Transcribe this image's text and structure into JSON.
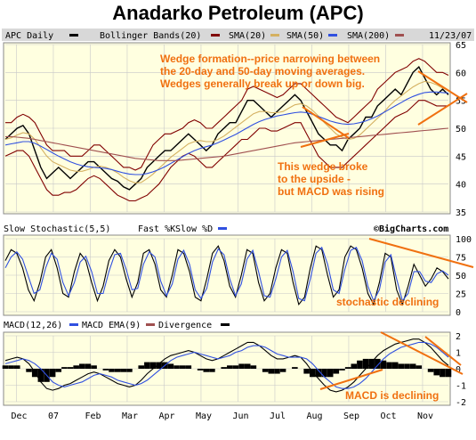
{
  "title": "Anadarko Petroleum  (APC)",
  "colors": {
    "panel": "#ffffe0",
    "legend": "#d8d8d8",
    "grid": "#c8c8c8",
    "annotation": "#f07010",
    "price": "#000000",
    "bollinger": "#800000",
    "sma20": "#d4b060",
    "sma50": "#3050e0",
    "sma200": "#a05050",
    "fastK": "#000000",
    "slowD": "#3050e0",
    "macd": "#000000",
    "ema": "#3050e0",
    "divergence": "#000000"
  },
  "legends": {
    "price": {
      "ticker": "APC Daily",
      "bollinger": "Bollinger Bands(20)",
      "sma20": "SMA(20)",
      "sma50": "SMA(50)",
      "sma200": "SMA(200)",
      "date": "11/23/07"
    },
    "stochastic": {
      "name": "Slow Stochastic(5,5)",
      "fast": "Fast %K",
      "slow": "Slow %D",
      "watermark": "©BigCharts.com"
    },
    "macd": {
      "name": "MACD(12,26)",
      "ema": "MACD EMA(9)",
      "divergence": "Divergence"
    }
  },
  "annotations": {
    "wedge": [
      "Wedge formation--price narrowing between",
      "the 20-day and 50-day moving averages.",
      "Wedges generally break up or down big."
    ],
    "breakout": [
      "This wedge broke",
      "to the upside -",
      "but MACD was rising"
    ],
    "stochastic": "stochastic declining",
    "macd": "MACD is declining"
  },
  "chart_data": [
    {
      "type": "line",
      "name": "price",
      "x_tick_labels": [
        "Dec",
        "07",
        "Feb",
        "Mar",
        "Apr",
        "May",
        "Jun",
        "Jul",
        "Aug",
        "Sep",
        "Oct",
        "Nov"
      ],
      "y_ticks": [
        35,
        40,
        45,
        50,
        55,
        60,
        65
      ],
      "ylim": [
        35,
        65
      ],
      "series": [
        {
          "name": "APC Daily",
          "values": [
            48,
            49,
            50,
            50.5,
            49,
            46,
            43,
            41,
            42,
            43,
            42,
            41,
            42,
            43,
            44,
            44,
            43,
            42,
            41,
            40.5,
            39.5,
            39,
            40,
            41,
            43,
            44,
            45,
            46,
            46,
            47,
            48,
            49,
            48,
            47,
            46,
            47,
            49,
            50,
            51,
            51,
            53,
            55,
            55,
            54,
            53,
            52,
            53,
            54,
            55,
            56,
            55,
            53,
            51,
            49,
            48,
            47,
            47,
            46,
            48,
            49,
            50,
            52,
            52,
            54,
            55,
            56,
            57,
            56,
            58,
            60,
            61,
            59,
            57,
            56,
            57,
            56
          ]
        },
        {
          "name": "Bollinger Upper",
          "values": [
            51,
            51,
            52,
            52.5,
            52,
            51,
            49,
            47,
            46,
            46,
            46,
            45,
            45,
            45,
            46,
            47,
            47,
            46,
            45,
            44,
            43,
            43,
            42.5,
            43,
            45,
            47,
            48,
            49,
            49,
            49.5,
            50,
            51,
            51.5,
            51,
            50,
            50,
            51,
            52,
            53,
            54,
            55,
            57,
            57.5,
            57,
            56.5,
            56,
            55.5,
            56,
            57,
            58,
            58,
            57,
            56,
            55,
            54,
            53,
            52,
            51.5,
            51,
            52,
            53,
            54,
            55,
            57,
            58,
            59,
            60,
            60.5,
            61,
            62,
            62.5,
            62,
            61,
            60,
            60,
            59.5
          ]
        },
        {
          "name": "Bollinger Lower",
          "values": [
            45,
            45.5,
            46,
            46,
            45,
            43,
            41,
            39,
            38,
            38,
            38.5,
            38.5,
            39,
            40,
            41,
            41.5,
            41,
            40,
            39,
            38,
            37.5,
            37,
            37,
            37.5,
            38,
            39,
            40,
            41.5,
            43,
            44,
            45,
            45.5,
            45,
            44,
            43,
            43,
            44,
            45,
            46,
            47,
            48,
            48,
            49,
            50,
            50,
            49.5,
            49.5,
            50,
            50.5,
            51,
            51,
            49,
            47,
            45,
            44,
            43,
            43,
            43,
            44,
            45,
            46,
            47,
            48,
            49,
            50,
            51,
            52,
            52.5,
            53,
            54,
            55,
            55,
            54.5,
            54,
            54,
            54
          ]
        },
        {
          "name": "SMA(20)",
          "values": [
            48,
            48.3,
            48.8,
            49.2,
            49,
            48,
            46.5,
            45,
            44,
            43.5,
            43,
            42.5,
            42.3,
            42.3,
            42.6,
            43,
            43.2,
            43,
            42.6,
            42,
            41.2,
            40.6,
            40.2,
            40.3,
            41,
            41.8,
            42.8,
            43.8,
            44.8,
            45.6,
            46.4,
            47.2,
            47.6,
            47.8,
            47.6,
            47.6,
            48,
            48.6,
            49.4,
            50.2,
            51,
            51.8,
            52.6,
            53,
            53,
            52.8,
            52.8,
            53,
            53.6,
            54.2,
            54.4,
            54,
            53.2,
            52.2,
            51,
            50,
            49,
            48.4,
            48,
            48.2,
            48.8,
            49.8,
            50.8,
            51.8,
            52.8,
            54,
            55,
            55.8,
            56.6,
            57.4,
            58,
            58.4,
            58.2,
            57.8,
            57.2,
            56.8
          ]
        },
        {
          "name": "SMA(50)",
          "values": [
            47,
            47.2,
            47.4,
            47.6,
            47.6,
            47.3,
            46.8,
            46.2,
            45.6,
            45,
            44.5,
            44,
            43.6,
            43.3,
            43.1,
            43,
            42.9,
            42.8,
            42.6,
            42.3,
            42,
            41.8,
            41.7,
            41.7,
            41.9,
            42.2,
            42.6,
            43.1,
            43.7,
            44.3,
            44.9,
            45.5,
            46,
            46.4,
            46.7,
            47,
            47.4,
            47.9,
            48.4,
            48.9,
            49.5,
            50.1,
            50.7,
            51.2,
            51.6,
            51.9,
            52.2,
            52.4,
            52.6,
            52.8,
            52.9,
            52.8,
            52.5,
            52.1,
            51.7,
            51.3,
            51,
            50.8,
            50.7,
            50.8,
            51,
            51.3,
            51.7,
            52.2,
            52.8,
            53.4,
            54,
            54.6,
            55.2,
            55.7,
            56.1,
            56.4,
            56.5,
            56.5,
            56.4,
            56.3
          ]
        },
        {
          "name": "SMA(200)",
          "values": [
            48.5,
            48.5,
            48.4,
            48.3,
            48.2,
            48,
            47.8,
            47.6,
            47.4,
            47.2,
            47,
            46.8,
            46.6,
            46.4,
            46.2,
            46,
            45.8,
            45.6,
            45.4,
            45.2,
            45,
            44.8,
            44.6,
            44.5,
            44.4,
            44.3,
            44.2,
            44.2,
            44.2,
            44.2,
            44.3,
            44.4,
            44.5,
            44.6,
            44.7,
            44.8,
            44.9,
            45,
            45.2,
            45.4,
            45.6,
            45.8,
            46,
            46.2,
            46.4,
            46.6,
            46.8,
            47,
            47.2,
            47.4,
            47.5,
            47.6,
            47.7,
            47.8,
            47.9,
            48,
            48.1,
            48.2,
            48.3,
            48.4,
            48.5,
            48.6,
            48.7,
            48.8,
            48.9,
            49,
            49.1,
            49.2,
            49.3,
            49.4,
            49.5,
            49.6,
            49.7,
            49.8,
            49.9,
            50
          ]
        }
      ]
    },
    {
      "type": "line",
      "name": "stochastic",
      "y_ticks": [
        0,
        25,
        50,
        75,
        100
      ],
      "ylim": [
        0,
        100
      ],
      "series": [
        {
          "name": "Fast %K",
          "values": [
            70,
            85,
            80,
            60,
            30,
            15,
            40,
            75,
            85,
            60,
            25,
            20,
            55,
            80,
            70,
            40,
            15,
            35,
            70,
            85,
            75,
            45,
            20,
            40,
            80,
            85,
            65,
            30,
            20,
            50,
            85,
            80,
            55,
            20,
            15,
            45,
            80,
            90,
            70,
            35,
            20,
            50,
            85,
            80,
            40,
            15,
            25,
            60,
            85,
            80,
            40,
            10,
            20,
            60,
            90,
            85,
            50,
            20,
            30,
            75,
            90,
            85,
            60,
            25,
            10,
            40,
            80,
            75,
            30,
            10,
            35,
            65,
            50,
            35,
            45,
            60,
            55,
            45
          ]
        },
        {
          "name": "Slow %D",
          "values": [
            60,
            75,
            82,
            72,
            48,
            25,
            30,
            60,
            80,
            72,
            40,
            22,
            40,
            68,
            76,
            55,
            25,
            25,
            55,
            78,
            80,
            58,
            30,
            32,
            65,
            82,
            75,
            42,
            22,
            38,
            72,
            84,
            65,
            30,
            18,
            32,
            68,
            86,
            78,
            45,
            22,
            38,
            72,
            84,
            55,
            22,
            20,
            45,
            75,
            84,
            55,
            18,
            15,
            45,
            80,
            88,
            65,
            30,
            25,
            58,
            84,
            88,
            70,
            35,
            15,
            30,
            68,
            78,
            45,
            15,
            25,
            55,
            55,
            42,
            40,
            52,
            56,
            50
          ]
        }
      ]
    },
    {
      "type": "line",
      "name": "macd",
      "y_ticks": [
        -2,
        -1,
        0,
        1,
        2
      ],
      "ylim": [
        -2,
        2
      ],
      "series": [
        {
          "name": "MACD(12,26)",
          "values": [
            0.5,
            0.6,
            0.7,
            0.6,
            0.3,
            -0.2,
            -0.8,
            -1.2,
            -1.3,
            -1.2,
            -1,
            -0.9,
            -0.7,
            -0.5,
            -0.3,
            -0.2,
            -0.3,
            -0.5,
            -0.7,
            -0.9,
            -1,
            -1.1,
            -1,
            -0.7,
            -0.3,
            0,
            0.3,
            0.6,
            0.8,
            0.9,
            1,
            1.1,
            1,
            0.8,
            0.6,
            0.5,
            0.6,
            0.8,
            1,
            1.2,
            1.4,
            1.6,
            1.6,
            1.4,
            1.1,
            0.8,
            0.6,
            0.6,
            0.7,
            0.8,
            0.7,
            0.3,
            -0.2,
            -0.6,
            -1,
            -1.3,
            -1.4,
            -1.3,
            -1.1,
            -0.8,
            -0.4,
            0,
            0.4,
            0.8,
            1.1,
            1.3,
            1.5,
            1.6,
            1.7,
            1.8,
            1.8,
            1.6,
            1.3,
            0.9,
            0.5,
            0.2
          ]
        },
        {
          "name": "MACD EMA(9)",
          "values": [
            0.3,
            0.4,
            0.5,
            0.6,
            0.5,
            0.3,
            0,
            -0.4,
            -0.8,
            -1,
            -1.1,
            -1,
            -0.9,
            -0.8,
            -0.6,
            -0.4,
            -0.3,
            -0.4,
            -0.5,
            -0.7,
            -0.8,
            -0.9,
            -1,
            -0.9,
            -0.7,
            -0.4,
            -0.1,
            0.2,
            0.5,
            0.7,
            0.8,
            0.9,
            1,
            0.9,
            0.8,
            0.7,
            0.6,
            0.7,
            0.8,
            1,
            1.1,
            1.3,
            1.4,
            1.4,
            1.3,
            1.1,
            0.9,
            0.8,
            0.7,
            0.7,
            0.7,
            0.6,
            0.3,
            -0.1,
            -0.5,
            -0.8,
            -1.1,
            -1.2,
            -1.2,
            -1.1,
            -0.9,
            -0.6,
            -0.2,
            0.2,
            0.6,
            0.9,
            1.1,
            1.3,
            1.4,
            1.5,
            1.6,
            1.6,
            1.5,
            1.3,
            1,
            0.7
          ]
        },
        {
          "name": "Divergence",
          "values": [
            0.2,
            0.2,
            0.2,
            0,
            -0.2,
            -0.5,
            -0.8,
            -0.8,
            -0.5,
            -0.2,
            0.1,
            0.1,
            0.2,
            0.3,
            0.3,
            0.2,
            0,
            -0.1,
            -0.2,
            -0.2,
            -0.2,
            -0.2,
            0,
            0.2,
            0.4,
            0.4,
            0.4,
            0.4,
            0.3,
            0.2,
            0.2,
            0.2,
            0,
            -0.1,
            -0.2,
            -0.2,
            0,
            0.1,
            0.2,
            0.2,
            0.3,
            0.3,
            0.2,
            0,
            -0.2,
            -0.3,
            -0.3,
            -0.2,
            0,
            0.1,
            0,
            -0.3,
            -0.5,
            -0.5,
            -0.5,
            -0.5,
            -0.3,
            -0.1,
            0.1,
            0.3,
            0.5,
            0.6,
            0.6,
            0.6,
            0.5,
            0.4,
            0.4,
            0.3,
            0.3,
            0.3,
            0.2,
            0,
            -0.2,
            -0.4,
            -0.5,
            -0.5
          ]
        }
      ]
    }
  ]
}
